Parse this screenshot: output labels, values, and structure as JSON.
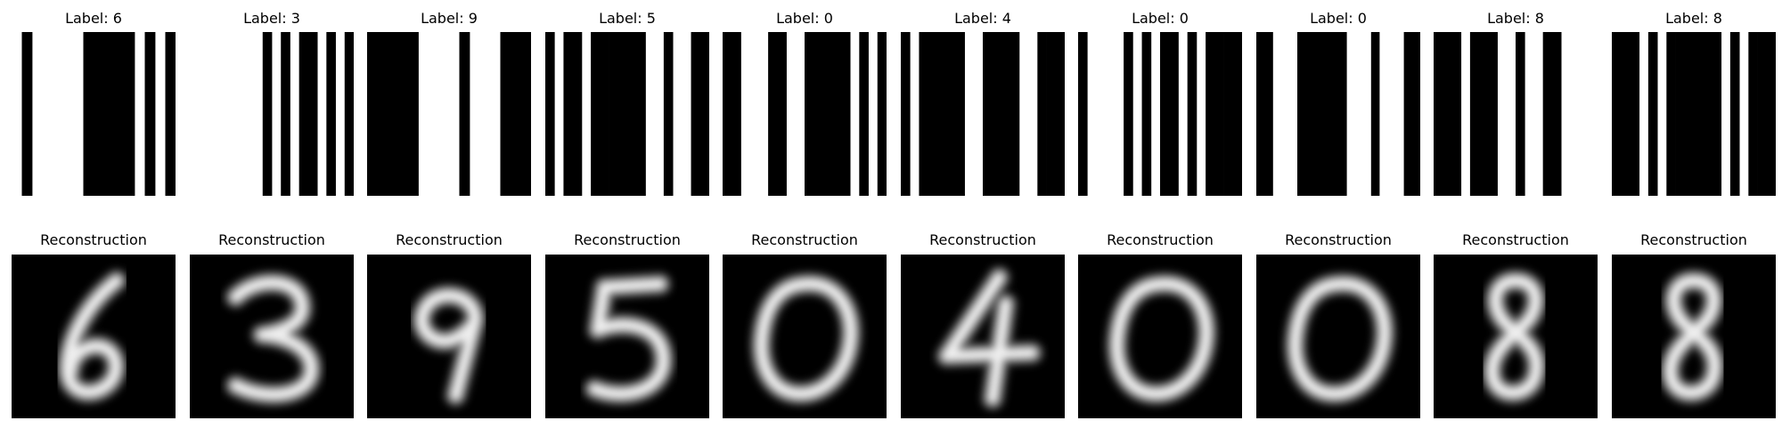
{
  "figure": {
    "columns": [
      {
        "label_title": "Label: 6",
        "recon_title": "Reconstruction",
        "digit": "6",
        "barcode_bits": [
          0,
          1,
          0,
          0,
          0,
          0,
          0,
          1,
          1,
          1,
          1,
          1,
          0,
          1,
          0,
          1
        ]
      },
      {
        "label_title": "Label: 3",
        "recon_title": "Reconstruction",
        "digit": "3",
        "barcode_bits": [
          0,
          0,
          0,
          0,
          0,
          0,
          0,
          0,
          1,
          0,
          1,
          0,
          1,
          1,
          0,
          1,
          0,
          1
        ]
      },
      {
        "label_title": "Label: 9",
        "recon_title": "Reconstruction",
        "digit": "9",
        "barcode_bits": [
          1,
          1,
          1,
          1,
          1,
          0,
          0,
          0,
          0,
          1,
          0,
          0,
          0,
          1,
          1,
          1
        ]
      },
      {
        "label_title": "Label: 5",
        "recon_title": "Reconstruction",
        "digit": "5",
        "barcode_bits": [
          1,
          0,
          1,
          1,
          0,
          1,
          1,
          1,
          1,
          1,
          1,
          0,
          0,
          1,
          0,
          0,
          1,
          1
        ]
      },
      {
        "label_title": "Label: 0",
        "recon_title": "Reconstruction",
        "digit": "0",
        "barcode_bits": [
          1,
          1,
          0,
          0,
          0,
          1,
          1,
          0,
          0,
          1,
          1,
          1,
          1,
          1,
          0,
          1,
          0,
          1
        ]
      },
      {
        "label_title": "Label: 4",
        "recon_title": "Reconstruction",
        "digit": "4",
        "barcode_bits": [
          1,
          0,
          1,
          1,
          1,
          1,
          1,
          0,
          0,
          1,
          1,
          1,
          1,
          0,
          0,
          1,
          1,
          1
        ]
      },
      {
        "label_title": "Label: 0",
        "recon_title": "Reconstruction",
        "digit": "0",
        "barcode_bits": [
          1,
          0,
          0,
          0,
          0,
          1,
          0,
          1,
          0,
          1,
          1,
          0,
          1,
          0,
          1,
          1,
          1,
          1
        ]
      },
      {
        "label_title": "Label: 0",
        "recon_title": "Reconstruction",
        "digit": "0",
        "barcode_bits": [
          1,
          1,
          0,
          0,
          0,
          1,
          1,
          1,
          1,
          1,
          1,
          0,
          0,
          0,
          1,
          0,
          0,
          0,
          1,
          1
        ]
      },
      {
        "label_title": "Label: 8",
        "recon_title": "Reconstruction",
        "digit": "8",
        "barcode_bits": [
          1,
          1,
          1,
          0,
          1,
          1,
          1,
          0,
          0,
          1,
          0,
          0,
          1,
          1,
          0,
          0,
          0,
          0
        ]
      },
      {
        "label_title": "Label: 8",
        "recon_title": "Reconstruction",
        "digit": "8",
        "barcode_bits": [
          1,
          1,
          1,
          0,
          1,
          0,
          1,
          1,
          1,
          1,
          1,
          1,
          0,
          1,
          0,
          1,
          1,
          1
        ]
      }
    ],
    "colors": {
      "bar": "#000000",
      "background": "#ffffff",
      "recon_background": "#000000",
      "stroke": "#eeeeee"
    }
  }
}
